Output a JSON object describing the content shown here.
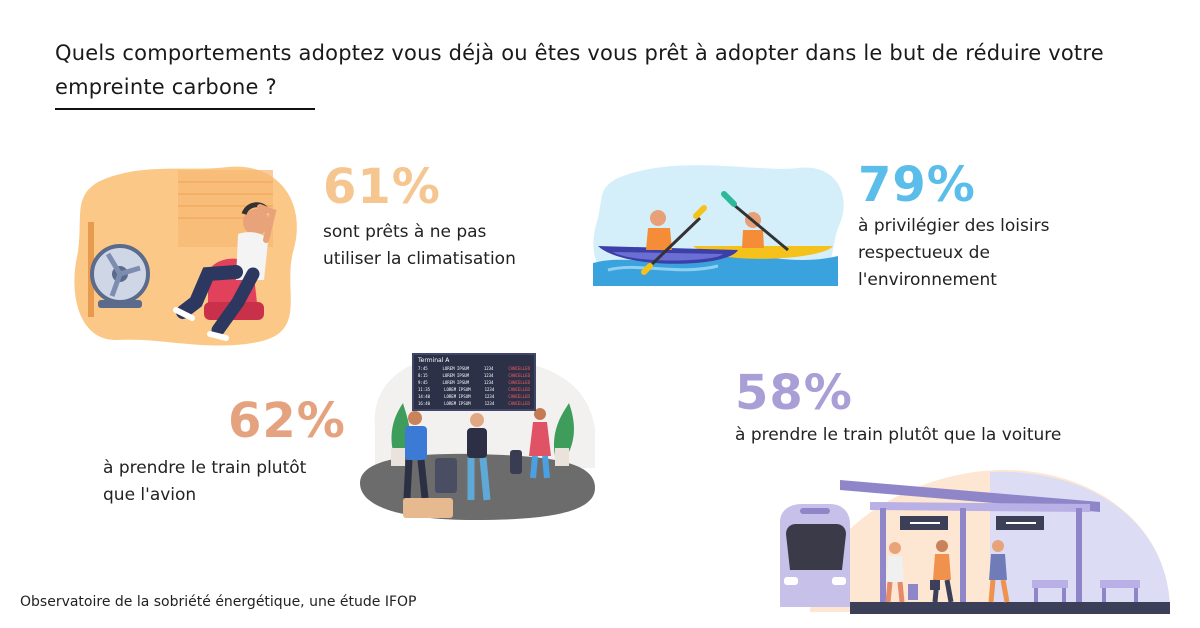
{
  "title": "Quels comportements adoptez vous déjà ou êtes vous prêt à adopter dans le but de réduire votre empreinte carbone  ?",
  "stats": [
    {
      "percent": "61%",
      "text_line1": "sont prêts à ne pas",
      "text_line2": "utiliser la climatisation",
      "text_line3": "",
      "color": "#f5c68f",
      "illustration": "man-with-fan-illustration"
    },
    {
      "percent": "79%",
      "text_line1": "à privilégier des loisirs",
      "text_line2": "respectueux de",
      "text_line3": "l'environnement",
      "color": "#5bbde9",
      "illustration": "kayak-illustration"
    },
    {
      "percent": "62%",
      "text_line1": "à prendre le train plutôt",
      "text_line2": "que l'avion",
      "text_line3": "",
      "color": "#e5a27e",
      "illustration": "airport-cancelled-illustration"
    },
    {
      "percent": "58%",
      "text_line1": "à prendre le train plutôt que la voiture",
      "text_line2": "",
      "text_line3": "",
      "color": "#a99ed6",
      "illustration": "train-station-illustration"
    }
  ],
  "board": {
    "title": "Terminal A",
    "rows": [
      {
        "time": "7:45",
        "dest": "LOREM IPSUM",
        "num": "1234",
        "status": "CANCELLED"
      },
      {
        "time": "8:15",
        "dest": "LOREM IPSUM",
        "num": "1234",
        "status": "CANCELLED"
      },
      {
        "time": "9:45",
        "dest": "LOREM IPSUM",
        "num": "1234",
        "status": "CANCELLED"
      },
      {
        "time": "11:35",
        "dest": "LOREM IPSUM",
        "num": "1234",
        "status": "CANCELLED"
      },
      {
        "time": "14:40",
        "dest": "LOREM IPSUM",
        "num": "1234",
        "status": "CANCELLED"
      },
      {
        "time": "16:40",
        "dest": "LOREM IPSUM",
        "num": "1234",
        "status": "CANCELLED"
      }
    ]
  },
  "footer": "Observatoire de la sobriété énergétique, une étude IFOP"
}
